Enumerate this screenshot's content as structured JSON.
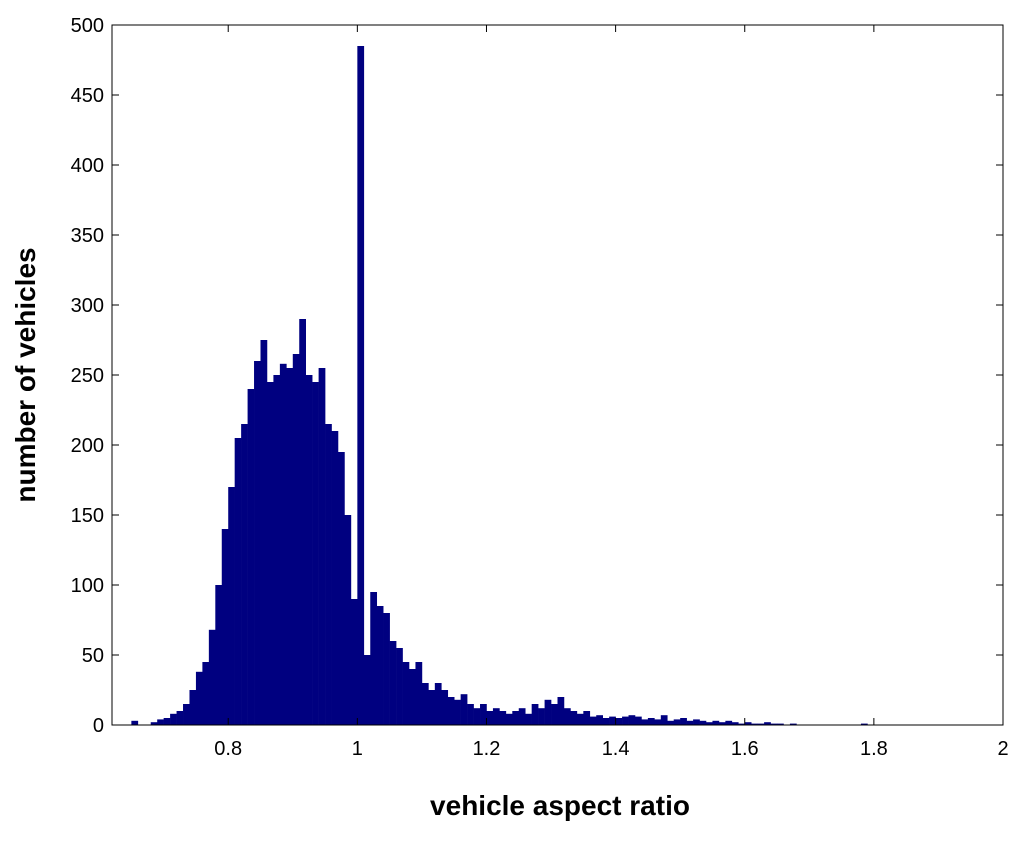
{
  "chart_data": {
    "type": "histogram",
    "xlabel": "vehicle aspect ratio",
    "ylabel": "number of vehicles",
    "color": "#000080",
    "bins": [
      0.65,
      0.66,
      0.67,
      0.68,
      0.69,
      0.7,
      0.71,
      0.72,
      0.73,
      0.74,
      0.75,
      0.76,
      0.77,
      0.78,
      0.79,
      0.8,
      0.81,
      0.82,
      0.83,
      0.84,
      0.85,
      0.86,
      0.87,
      0.88,
      0.89,
      0.9,
      0.91,
      0.92,
      0.93,
      0.94,
      0.95,
      0.96,
      0.97,
      0.98,
      0.99,
      1.0,
      1.01,
      1.02,
      1.03,
      1.04,
      1.05,
      1.06,
      1.07,
      1.08,
      1.09,
      1.1,
      1.11,
      1.12,
      1.13,
      1.14,
      1.15,
      1.16,
      1.17,
      1.18,
      1.19,
      1.2,
      1.21,
      1.22,
      1.23,
      1.24,
      1.25,
      1.26,
      1.27,
      1.28,
      1.29,
      1.3,
      1.31,
      1.32,
      1.33,
      1.34,
      1.35,
      1.36,
      1.37,
      1.38,
      1.39,
      1.4,
      1.41,
      1.42,
      1.43,
      1.44,
      1.45,
      1.46,
      1.47,
      1.48,
      1.49,
      1.5,
      1.51,
      1.52,
      1.53,
      1.54,
      1.55,
      1.56,
      1.57,
      1.58,
      1.59,
      1.6,
      1.61,
      1.62,
      1.63,
      1.64,
      1.65,
      1.66,
      1.67,
      1.68,
      1.69,
      1.7,
      1.71,
      1.72,
      1.73,
      1.74,
      1.75,
      1.76,
      1.77,
      1.78,
      1.79
    ],
    "values": [
      3,
      0,
      0,
      2,
      4,
      5,
      8,
      10,
      15,
      25,
      38,
      45,
      68,
      100,
      140,
      170,
      205,
      215,
      240,
      260,
      275,
      245,
      250,
      258,
      255,
      265,
      290,
      250,
      245,
      255,
      215,
      210,
      195,
      150,
      90,
      485,
      50,
      95,
      85,
      80,
      60,
      55,
      45,
      40,
      45,
      30,
      25,
      30,
      25,
      20,
      18,
      22,
      15,
      12,
      15,
      10,
      12,
      10,
      8,
      10,
      12,
      8,
      15,
      12,
      18,
      15,
      20,
      12,
      10,
      8,
      10,
      6,
      7,
      5,
      6,
      5,
      6,
      7,
      6,
      4,
      5,
      4,
      7,
      3,
      4,
      5,
      3,
      4,
      3,
      2,
      3,
      2,
      3,
      2,
      1,
      2,
      1,
      1,
      2,
      1,
      1,
      0,
      1,
      0,
      0,
      0,
      0,
      0,
      0,
      0,
      0,
      0,
      0,
      1
    ],
    "xlim": [
      0.62,
      2
    ],
    "ylim": [
      0,
      500
    ],
    "xticks": [
      0.8,
      1,
      1.2,
      1.4,
      1.6,
      1.8,
      2
    ],
    "yticks": [
      0,
      50,
      100,
      150,
      200,
      250,
      300,
      350,
      400,
      450,
      500
    ]
  }
}
